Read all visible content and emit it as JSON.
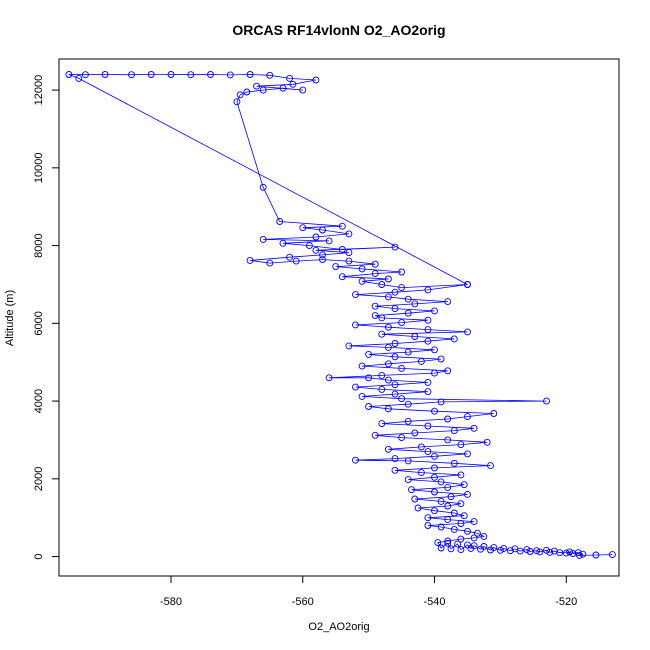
{
  "chart_data": {
    "type": "line",
    "title": "ORCAS RF14vlonN O2_AO2orig",
    "xlabel": "O2_AO2orig",
    "ylabel": "Altitude (m)",
    "xlim": [
      -597,
      -512
    ],
    "ylim": [
      -500,
      12800
    ],
    "x_ticks": [
      "-580",
      "-560",
      "-540",
      "-520"
    ],
    "y_ticks": [
      "0",
      "2000",
      "4000",
      "6000",
      "8000",
      "10000",
      "12000"
    ],
    "series": [
      {
        "name": "",
        "color": "#0000ff",
        "marker": "open-circle",
        "points": [
          [
            -513,
            50
          ],
          [
            -515.5,
            40
          ],
          [
            -518,
            30
          ],
          [
            -517.5,
            60
          ],
          [
            -519,
            80
          ],
          [
            -518.2,
            100
          ],
          [
            -520,
            90
          ],
          [
            -519.5,
            120
          ],
          [
            -521,
            100
          ],
          [
            -521.8,
            140
          ],
          [
            -522.5,
            110
          ],
          [
            -523,
            160
          ],
          [
            -524,
            120
          ],
          [
            -524.5,
            150
          ],
          [
            -525.5,
            130
          ],
          [
            -526,
            180
          ],
          [
            -527,
            140
          ],
          [
            -527.8,
            200
          ],
          [
            -528.5,
            150
          ],
          [
            -529.5,
            210
          ],
          [
            -530,
            160
          ],
          [
            -531,
            230
          ],
          [
            -531.5,
            170
          ],
          [
            -532.5,
            260
          ],
          [
            -533,
            190
          ],
          [
            -534,
            280
          ],
          [
            -534.5,
            210
          ],
          [
            -535,
            300
          ],
          [
            -536,
            180
          ],
          [
            -536.5,
            320
          ],
          [
            -537.5,
            200
          ],
          [
            -538,
            340
          ],
          [
            -539,
            220
          ],
          [
            -539.5,
            360
          ],
          [
            -538,
            400
          ],
          [
            -536,
            450
          ],
          [
            -534,
            480
          ],
          [
            -532.5,
            520
          ],
          [
            -533.5,
            600
          ],
          [
            -535,
            650
          ],
          [
            -537,
            700
          ],
          [
            -539,
            760
          ],
          [
            -541,
            800
          ],
          [
            -536,
            850
          ],
          [
            -534,
            900
          ],
          [
            -538,
            950
          ],
          [
            -541,
            1000
          ],
          [
            -535.5,
            1050
          ],
          [
            -537,
            1120
          ],
          [
            -540,
            1180
          ],
          [
            -542.5,
            1250
          ],
          [
            -538,
            1300
          ],
          [
            -536,
            1360
          ],
          [
            -539,
            1420
          ],
          [
            -543,
            1480
          ],
          [
            -537.5,
            1540
          ],
          [
            -535,
            1600
          ],
          [
            -540,
            1660
          ],
          [
            -543.5,
            1720
          ],
          [
            -538,
            1780
          ],
          [
            -535.5,
            1850
          ],
          [
            -539,
            1920
          ],
          [
            -544,
            1980
          ],
          [
            -540,
            2040
          ],
          [
            -536,
            2100
          ],
          [
            -542,
            2160
          ],
          [
            -546,
            2220
          ],
          [
            -540,
            2280
          ],
          [
            -531.5,
            2340
          ],
          [
            -537,
            2400
          ],
          [
            -544,
            2460
          ],
          [
            -552,
            2480
          ],
          [
            -546,
            2520
          ],
          [
            -540,
            2580
          ],
          [
            -535,
            2640
          ],
          [
            -541,
            2700
          ],
          [
            -547,
            2760
          ],
          [
            -542,
            2820
          ],
          [
            -536,
            2880
          ],
          [
            -532,
            2940
          ],
          [
            -538,
            3000
          ],
          [
            -545,
            3060
          ],
          [
            -549,
            3120
          ],
          [
            -543,
            3180
          ],
          [
            -537,
            3240
          ],
          [
            -534,
            3300
          ],
          [
            -541,
            3360
          ],
          [
            -548,
            3420
          ],
          [
            -544,
            3480
          ],
          [
            -538,
            3540
          ],
          [
            -535,
            3600
          ],
          [
            -531,
            3680
          ],
          [
            -540,
            3740
          ],
          [
            -547,
            3800
          ],
          [
            -550,
            3860
          ],
          [
            -544,
            3920
          ],
          [
            -539,
            3980
          ],
          [
            -523,
            4000
          ],
          [
            -545,
            4060
          ],
          [
            -551,
            4120
          ],
          [
            -546,
            4180
          ],
          [
            -541,
            4240
          ],
          [
            -548,
            4300
          ],
          [
            -552,
            4360
          ],
          [
            -546,
            4420
          ],
          [
            -541,
            4480
          ],
          [
            -547,
            4540
          ],
          [
            -550,
            4600
          ],
          [
            -556,
            4600
          ],
          [
            -548,
            4660
          ],
          [
            -540,
            4720
          ],
          [
            -538,
            4780
          ],
          [
            -545,
            4840
          ],
          [
            -551,
            4900
          ],
          [
            -547,
            4960
          ],
          [
            -542,
            5020
          ],
          [
            -539,
            5080
          ],
          [
            -546,
            5140
          ],
          [
            -550,
            5200
          ],
          [
            -544,
            5260
          ],
          [
            -540,
            5320
          ],
          [
            -547,
            5380
          ],
          [
            -553,
            5420
          ],
          [
            -546,
            5480
          ],
          [
            -541,
            5540
          ],
          [
            -537,
            5600
          ],
          [
            -543,
            5660
          ],
          [
            -548,
            5720
          ],
          [
            -535,
            5780
          ],
          [
            -541,
            5840
          ],
          [
            -547,
            5900
          ],
          [
            -552,
            5960
          ],
          [
            -545,
            6020
          ],
          [
            -541,
            6080
          ],
          [
            -548,
            6140
          ],
          [
            -549,
            6200
          ],
          [
            -544,
            6260
          ],
          [
            -540,
            6320
          ],
          [
            -546,
            6380
          ],
          [
            -549,
            6440
          ],
          [
            -543,
            6500
          ],
          [
            -538,
            6560
          ],
          [
            -544,
            6620
          ],
          [
            -547,
            6680
          ],
          [
            -552,
            6740
          ],
          [
            -546,
            6800
          ],
          [
            -541,
            6860
          ],
          [
            -535,
            7000
          ],
          [
            -545,
            6920
          ],
          [
            -548,
            7000
          ],
          [
            -551,
            7080
          ],
          [
            -547,
            7140
          ],
          [
            -554,
            7200
          ],
          [
            -549,
            7280
          ],
          [
            -545,
            7320
          ],
          [
            -551,
            7400
          ],
          [
            -555,
            7460
          ],
          [
            -549,
            7520
          ],
          [
            -553,
            7600
          ],
          [
            -557,
            7640
          ],
          [
            -561,
            7600
          ],
          [
            -565,
            7550
          ],
          [
            -568,
            7620
          ],
          [
            -562,
            7700
          ],
          [
            -557,
            7760
          ],
          [
            -553,
            7820
          ],
          [
            -558,
            7880
          ],
          [
            -546,
            7960
          ],
          [
            -554,
            7900
          ],
          [
            -559,
            8000
          ],
          [
            -563,
            8060
          ],
          [
            -556,
            8120
          ],
          [
            -566,
            8160
          ],
          [
            -558,
            8220
          ],
          [
            -553,
            8300
          ],
          [
            -557,
            8400
          ],
          [
            -560,
            8460
          ],
          [
            -554,
            8500
          ],
          [
            -563.5,
            8620
          ],
          [
            -566,
            9500
          ],
          [
            -570,
            11700
          ],
          [
            -569.5,
            11880
          ],
          [
            -568.5,
            11950
          ],
          [
            -566,
            12000
          ],
          [
            -563,
            12050
          ],
          [
            -560,
            12000
          ],
          [
            -567,
            12100
          ],
          [
            -561.5,
            12150
          ],
          [
            -558,
            12260
          ],
          [
            -562,
            12300
          ],
          [
            -565,
            12380
          ],
          [
            -568,
            12400
          ],
          [
            -571,
            12390
          ],
          [
            -574,
            12400
          ],
          [
            -577,
            12395
          ],
          [
            -580,
            12400
          ],
          [
            -583,
            12400
          ],
          [
            -586,
            12395
          ],
          [
            -590,
            12400
          ],
          [
            -593,
            12395
          ],
          [
            -595.5,
            12400
          ],
          [
            -594,
            12300
          ],
          [
            -535,
            7000
          ]
        ]
      }
    ]
  }
}
